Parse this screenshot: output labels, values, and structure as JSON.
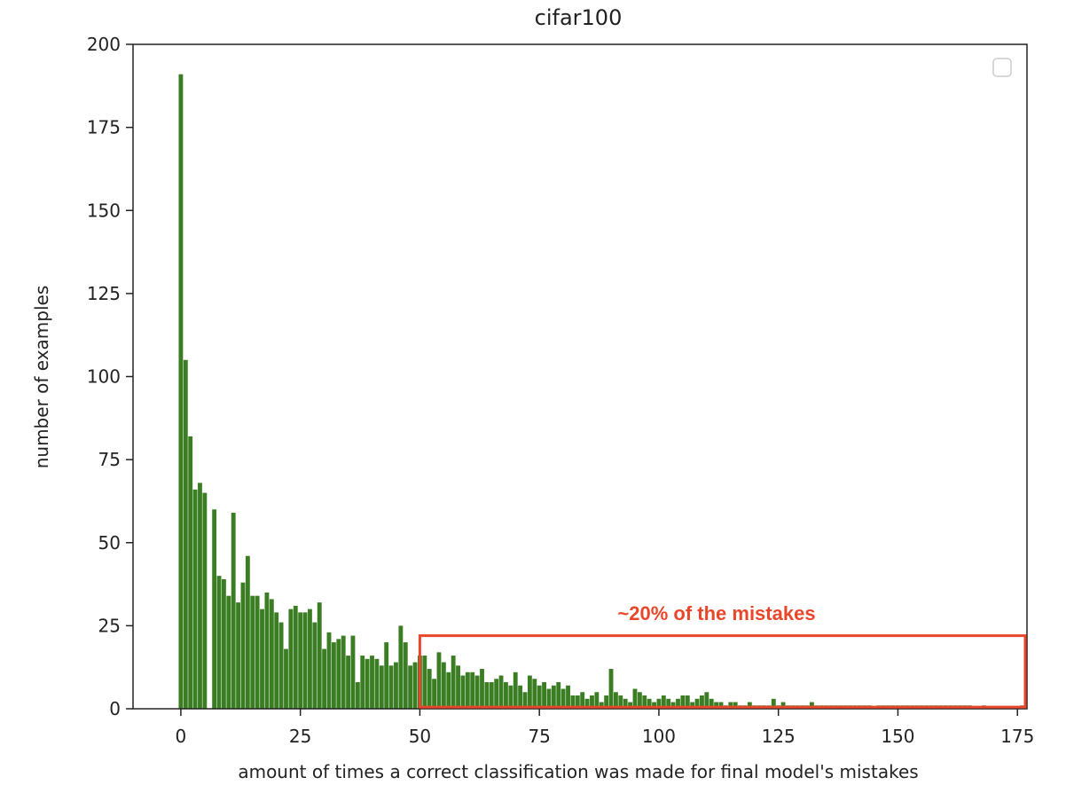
{
  "chart_data": {
    "type": "bar",
    "title": "cifar100",
    "xlabel": "amount of times a correct classification was made for final model's mistakes",
    "ylabel": "number of examples",
    "xlim": [
      -10,
      177
    ],
    "ylim": [
      0,
      200
    ],
    "xticks": [
      0,
      25,
      50,
      75,
      100,
      125,
      150,
      175
    ],
    "yticks": [
      0,
      25,
      50,
      75,
      100,
      125,
      150,
      175,
      200
    ],
    "bar_color": "#3a7d22",
    "legend": "top-right (empty)",
    "x": [
      0,
      1,
      2,
      3,
      4,
      5,
      6,
      7,
      8,
      9,
      10,
      11,
      12,
      13,
      14,
      15,
      16,
      17,
      18,
      19,
      20,
      21,
      22,
      23,
      24,
      25,
      26,
      27,
      28,
      29,
      30,
      31,
      32,
      33,
      34,
      35,
      36,
      37,
      38,
      39,
      40,
      41,
      42,
      43,
      44,
      45,
      46,
      47,
      48,
      49,
      50,
      51,
      52,
      53,
      54,
      55,
      56,
      57,
      58,
      59,
      60,
      61,
      62,
      63,
      64,
      65,
      66,
      67,
      68,
      69,
      70,
      71,
      72,
      73,
      74,
      75,
      76,
      77,
      78,
      79,
      80,
      81,
      82,
      83,
      84,
      85,
      86,
      87,
      88,
      89,
      90,
      91,
      92,
      93,
      94,
      95,
      96,
      97,
      98,
      99,
      100,
      101,
      102,
      103,
      104,
      105,
      106,
      107,
      108,
      109,
      110,
      111,
      112,
      113,
      114,
      115,
      116,
      117,
      118,
      119,
      120,
      121,
      122,
      123,
      124,
      125,
      126,
      127,
      128,
      129,
      130,
      131,
      132,
      133,
      134,
      135,
      136,
      137,
      138,
      139,
      140,
      141,
      142,
      143,
      144,
      145,
      146,
      147,
      148,
      149,
      150,
      151,
      152,
      153,
      154,
      155,
      156,
      157,
      158,
      159,
      160,
      161,
      162,
      163,
      164,
      165,
      166,
      167,
      168,
      169,
      170,
      171,
      172,
      173,
      174,
      175,
      176
    ],
    "values": [
      191,
      105,
      82,
      66,
      68,
      65,
      0,
      60,
      40,
      39,
      34,
      59,
      32,
      38,
      46,
      34,
      34,
      30,
      35,
      33,
      29,
      26,
      18,
      30,
      31,
      29,
      29,
      30,
      26,
      32,
      18,
      23,
      20,
      21,
      22,
      16,
      22,
      8,
      16,
      15,
      16,
      15,
      13,
      20,
      13,
      14,
      25,
      20,
      13,
      14,
      16,
      16,
      12,
      9,
      17,
      14,
      11,
      16,
      13,
      10,
      11,
      11,
      10,
      12,
      8,
      8,
      9,
      10,
      8,
      7,
      11,
      7,
      5,
      10,
      9,
      7,
      8,
      6,
      7,
      8,
      6,
      7,
      4,
      4,
      5,
      3,
      4,
      5,
      2,
      4,
      12,
      5,
      4,
      3,
      2,
      6,
      5,
      4,
      3,
      2,
      3,
      4,
      3,
      2,
      3,
      4,
      4,
      2,
      3,
      4,
      5,
      3,
      2,
      2,
      1,
      2,
      2,
      1,
      1,
      2,
      1,
      1,
      1,
      1,
      3,
      1,
      2,
      1,
      1,
      1,
      1,
      1,
      2,
      1,
      1,
      1,
      1,
      1,
      1,
      1,
      1,
      1,
      1,
      1,
      1,
      0,
      1,
      1,
      1,
      1,
      1,
      1,
      1,
      1,
      1,
      1,
      1,
      1,
      1,
      1,
      1,
      1,
      1,
      1,
      1,
      1,
      0,
      0,
      1,
      0,
      0,
      0,
      0,
      0,
      0,
      0,
      1
    ],
    "annotation": {
      "text": "~20% of the mistakes",
      "x_range": [
        50,
        177
      ],
      "y_range": [
        0.5,
        22
      ],
      "color": "#e8472b"
    }
  }
}
